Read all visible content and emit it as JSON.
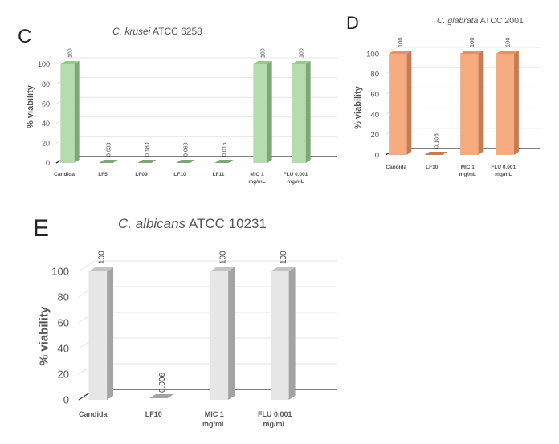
{
  "figure": {
    "panels": [
      {
        "letter": "C",
        "title_italic": "C. krusei",
        "title_rest": " ATCC 6258"
      },
      {
        "letter": "D",
        "title_italic": "C. glabrata",
        "title_rest": " ATCC 2001"
      },
      {
        "letter": "E",
        "title_italic": "C. albicans",
        "title_rest": " ATCC 10231"
      }
    ]
  },
  "chart_data": [
    {
      "type": "bar",
      "panel": "C",
      "title": "C. krusei ATCC 6258",
      "xlabel": "",
      "ylabel": "% viability",
      "categories": [
        "Candida",
        "LF5",
        "LF09",
        "LF10",
        "LF11",
        "MIC 1 mg/mL",
        "FLU 0.001 mg/mL"
      ],
      "values": [
        100,
        0.033,
        0.18,
        0.06,
        0.015,
        100,
        100
      ],
      "data_labels": [
        "100",
        "0,033",
        "0,180",
        "0,060",
        "0,015",
        "100",
        "100"
      ],
      "yticks": [
        0,
        20,
        40,
        60,
        80,
        100
      ],
      "ylim": [
        0,
        100
      ],
      "grid": true,
      "style": "3d-column",
      "colors": {
        "front": "#b5dcab",
        "side": "#7ea676",
        "top": "#9cc692"
      }
    },
    {
      "type": "bar",
      "panel": "D",
      "title": "C. glabrata ATCC 2001",
      "xlabel": "",
      "ylabel": "% viability",
      "categories": [
        "Candida",
        "LF10",
        "MIC 1 mg/mL",
        "FLU 0.001 mg/mL"
      ],
      "values": [
        100,
        0.105,
        100,
        100
      ],
      "data_labels": [
        "100",
        "0,105",
        "100",
        "100"
      ],
      "yticks": [
        0,
        20,
        40,
        60,
        80,
        100
      ],
      "ylim": [
        0,
        100
      ],
      "grid": true,
      "style": "3d-column",
      "colors": {
        "front": "#f6aa80",
        "side": "#c47c55",
        "top": "#e0936a"
      }
    },
    {
      "type": "bar",
      "panel": "E",
      "title": "C. albicans ATCC 10231",
      "xlabel": "",
      "ylabel": "% viability",
      "categories": [
        "Candida",
        "LF10",
        "MIC 1 mg/mL",
        "FLU 0.001 mg/mL"
      ],
      "values": [
        100,
        0.006,
        100,
        100
      ],
      "data_labels": [
        "100",
        "0,006",
        "100",
        "100"
      ],
      "yticks": [
        0,
        20,
        40,
        60,
        80,
        100
      ],
      "ylim": [
        0,
        100
      ],
      "grid": true,
      "style": "3d-column",
      "colors": {
        "front": "#e6e6e6",
        "side": "#a3a3a3",
        "top": "#c4c4c4"
      }
    }
  ]
}
